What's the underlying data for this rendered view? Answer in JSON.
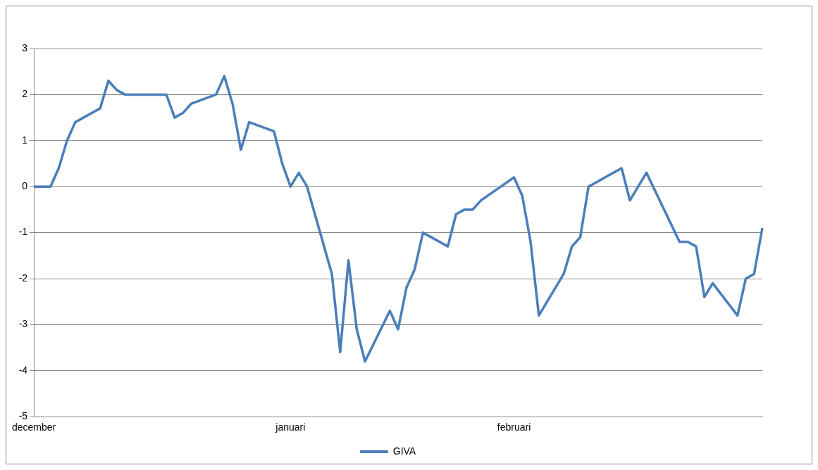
{
  "chart_data": {
    "type": "line",
    "categories": [
      "december",
      null,
      null,
      null,
      null,
      null,
      null,
      null,
      null,
      null,
      null,
      null,
      null,
      null,
      null,
      null,
      null,
      null,
      null,
      null,
      null,
      null,
      null,
      null,
      null,
      null,
      null,
      null,
      null,
      null,
      null,
      "januari",
      null,
      null,
      null,
      null,
      null,
      null,
      null,
      null,
      null,
      null,
      null,
      null,
      null,
      null,
      null,
      null,
      null,
      null,
      null,
      null,
      null,
      null,
      null,
      null,
      null,
      null,
      "februari",
      null,
      null,
      null,
      null,
      null,
      null,
      null,
      null,
      null,
      null,
      null,
      null,
      null,
      null,
      null,
      null,
      null,
      null,
      null,
      null,
      null,
      null,
      null,
      null,
      null,
      null,
      null,
      null,
      null,
      null
    ],
    "series": [
      {
        "name": "GIVA",
        "color": "#4a7ebb",
        "values": [
          0,
          null,
          0,
          0.4,
          1.0,
          1.4,
          null,
          null,
          1.7,
          2.3,
          2.1,
          2.0,
          2.0,
          null,
          null,
          2.0,
          2.0,
          1.5,
          1.6,
          1.8,
          null,
          null,
          2.0,
          2.4,
          1.8,
          0.8,
          1.4,
          null,
          null,
          1.2,
          0.5,
          0.0,
          0.3,
          0,
          null,
          null,
          -1.9,
          -3.6,
          -1.6,
          -3.1,
          -3.8,
          null,
          null,
          -2.7,
          -3.1,
          -2.2,
          -1.8,
          -1.0,
          null,
          null,
          -1.3,
          -0.6,
          -0.5,
          -0.5,
          -0.3,
          null,
          null,
          null,
          0.2,
          -0.2,
          -1.2,
          -2.8,
          null,
          null,
          -1.9,
          -1.3,
          -1.1,
          0.0,
          0.1,
          null,
          null,
          0.4,
          -0.3,
          0,
          0.3,
          null,
          null,
          null,
          -1.2,
          -1.2,
          -1.3,
          -2.4,
          -2.1,
          null,
          null,
          -2.8,
          -2.0,
          -1.9,
          -0.9
        ]
      }
    ],
    "ylim": [
      -5,
      3
    ],
    "yticks": [
      -5,
      -4,
      -3,
      -2,
      -1,
      0,
      1,
      2,
      3
    ],
    "grid": "y",
    "legend": "bottom",
    "marker": "none",
    "line_style": "solid"
  }
}
